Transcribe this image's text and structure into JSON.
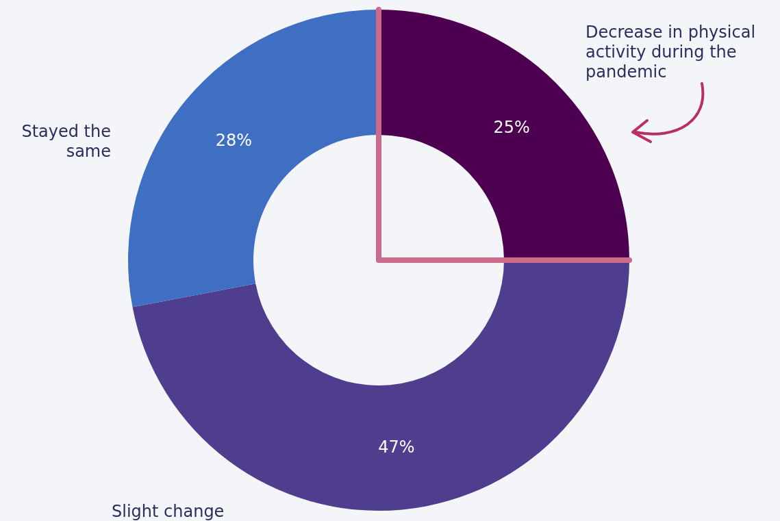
{
  "chart_data": {
    "type": "donut",
    "categories": [
      "Decrease in physical activity during the pandemic",
      "Slight change",
      "Stayed the same"
    ],
    "values": [
      25,
      47,
      28
    ],
    "colors": [
      "#4d0050",
      "#4f3d8e",
      "#3f6fc2"
    ],
    "value_labels": [
      "25%",
      "47%",
      "28%"
    ]
  }
}
